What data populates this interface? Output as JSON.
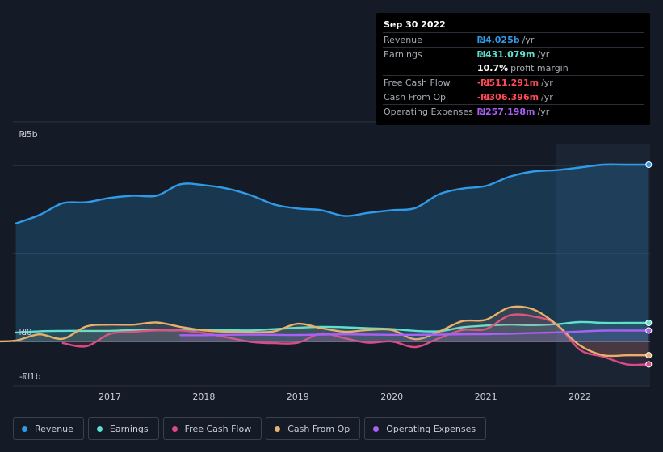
{
  "tooltip": {
    "date": "Sep 30 2022",
    "rows": [
      {
        "label": "Revenue",
        "value": "₪4.025b",
        "unit": "/yr",
        "color": "#2f9be8"
      },
      {
        "label": "Earnings",
        "value": "₪431.079m",
        "unit": "/yr",
        "color": "#5fe0cf"
      },
      {
        "label": "",
        "value": "10.7%",
        "unit": "profit margin",
        "color": "#ffffff"
      },
      {
        "label": "Free Cash Flow",
        "value": "-₪511.291m",
        "unit": "/yr",
        "color": "#ff4a5a"
      },
      {
        "label": "Cash From Op",
        "value": "-₪306.396m",
        "unit": "/yr",
        "color": "#ff4a5a"
      },
      {
        "label": "Operating Expenses",
        "value": "₪257.198m",
        "unit": "/yr",
        "color": "#a960f4"
      }
    ]
  },
  "chart_data": {
    "type": "line",
    "title": "",
    "ylim": [
      -1000,
      5000
    ],
    "y_ticks": [
      {
        "value": 5000,
        "label": "₪5b"
      },
      {
        "value": 0,
        "label": "₪0"
      },
      {
        "value": -1000,
        "label": "-₪1b"
      }
    ],
    "x_ticks": [
      {
        "value": 2017,
        "label": "2017"
      },
      {
        "value": 2018,
        "label": "2018"
      },
      {
        "value": 2019,
        "label": "2019"
      },
      {
        "value": 2020,
        "label": "2020"
      },
      {
        "value": 2021,
        "label": "2021"
      },
      {
        "value": 2022,
        "label": "2022"
      }
    ],
    "xlim": [
      2015.75,
      2022.75
    ],
    "forecast_start": 2021.75,
    "series": [
      {
        "name": "Revenue",
        "color": "#2f9be8",
        "fill": true,
        "points": [
          [
            2016.0,
            2690
          ],
          [
            2016.25,
            2880
          ],
          [
            2016.5,
            3150
          ],
          [
            2016.75,
            3170
          ],
          [
            2017.0,
            3270
          ],
          [
            2017.25,
            3320
          ],
          [
            2017.5,
            3320
          ],
          [
            2017.75,
            3580
          ],
          [
            2018.0,
            3560
          ],
          [
            2018.25,
            3480
          ],
          [
            2018.5,
            3330
          ],
          [
            2018.75,
            3120
          ],
          [
            2019.0,
            3030
          ],
          [
            2019.25,
            2990
          ],
          [
            2019.5,
            2860
          ],
          [
            2019.75,
            2930
          ],
          [
            2020.0,
            2990
          ],
          [
            2020.25,
            3040
          ],
          [
            2020.5,
            3350
          ],
          [
            2020.75,
            3480
          ],
          [
            2021.0,
            3540
          ],
          [
            2021.25,
            3750
          ],
          [
            2021.5,
            3870
          ],
          [
            2021.75,
            3900
          ],
          [
            2022.0,
            3960
          ],
          [
            2022.25,
            4025
          ],
          [
            2022.5,
            4025
          ]
        ]
      },
      {
        "name": "Earnings",
        "color": "#5fe0cf",
        "fill": false,
        "points": [
          [
            2016.0,
            210
          ],
          [
            2016.25,
            240
          ],
          [
            2016.5,
            250
          ],
          [
            2016.75,
            250
          ],
          [
            2017.0,
            250
          ],
          [
            2017.25,
            270
          ],
          [
            2017.5,
            270
          ],
          [
            2017.75,
            260
          ],
          [
            2018.0,
            280
          ],
          [
            2018.25,
            270
          ],
          [
            2018.5,
            260
          ],
          [
            2018.75,
            290
          ],
          [
            2019.0,
            320
          ],
          [
            2019.25,
            340
          ],
          [
            2019.5,
            330
          ],
          [
            2019.75,
            310
          ],
          [
            2020.0,
            290
          ],
          [
            2020.25,
            250
          ],
          [
            2020.5,
            240
          ],
          [
            2020.75,
            330
          ],
          [
            2021.0,
            370
          ],
          [
            2021.25,
            390
          ],
          [
            2021.5,
            380
          ],
          [
            2021.75,
            400
          ],
          [
            2022.0,
            450
          ],
          [
            2022.25,
            431
          ],
          [
            2022.5,
            431
          ]
        ]
      },
      {
        "name": "Free Cash Flow",
        "color": "#d94b86",
        "fill": false,
        "points": [
          [
            2016.5,
            -30
          ],
          [
            2016.75,
            -100
          ],
          [
            2017.0,
            180
          ],
          [
            2017.25,
            230
          ],
          [
            2017.5,
            260
          ],
          [
            2017.75,
            260
          ],
          [
            2018.0,
            200
          ],
          [
            2018.25,
            100
          ],
          [
            2018.5,
            0
          ],
          [
            2018.75,
            -30
          ],
          [
            2019.0,
            -20
          ],
          [
            2019.25,
            190
          ],
          [
            2019.5,
            80
          ],
          [
            2019.75,
            -20
          ],
          [
            2020.0,
            10
          ],
          [
            2020.25,
            -120
          ],
          [
            2020.5,
            80
          ],
          [
            2020.75,
            270
          ],
          [
            2021.0,
            290
          ],
          [
            2021.25,
            600
          ],
          [
            2021.5,
            580
          ],
          [
            2021.75,
            400
          ],
          [
            2022.0,
            -180
          ],
          [
            2022.25,
            -340
          ],
          [
            2022.5,
            -511
          ]
        ]
      },
      {
        "name": "Cash From Op",
        "color": "#e8b06a",
        "fill": false,
        "points": [
          [
            2015.75,
            10
          ],
          [
            2016.0,
            30
          ],
          [
            2016.25,
            170
          ],
          [
            2016.5,
            70
          ],
          [
            2016.75,
            350
          ],
          [
            2017.0,
            390
          ],
          [
            2017.25,
            390
          ],
          [
            2017.5,
            440
          ],
          [
            2017.75,
            340
          ],
          [
            2018.0,
            260
          ],
          [
            2018.25,
            230
          ],
          [
            2018.5,
            220
          ],
          [
            2018.75,
            240
          ],
          [
            2019.0,
            410
          ],
          [
            2019.25,
            310
          ],
          [
            2019.5,
            230
          ],
          [
            2019.75,
            270
          ],
          [
            2020.0,
            270
          ],
          [
            2020.25,
            60
          ],
          [
            2020.5,
            230
          ],
          [
            2020.75,
            470
          ],
          [
            2021.0,
            500
          ],
          [
            2021.25,
            780
          ],
          [
            2021.5,
            740
          ],
          [
            2021.75,
            400
          ],
          [
            2022.0,
            -80
          ],
          [
            2022.25,
            -306
          ],
          [
            2022.5,
            -306
          ]
        ]
      },
      {
        "name": "Operating Expenses",
        "color": "#a960f4",
        "fill": false,
        "points": [
          [
            2017.75,
            150
          ],
          [
            2018.0,
            150
          ],
          [
            2018.25,
            160
          ],
          [
            2018.5,
            165
          ],
          [
            2018.75,
            160
          ],
          [
            2019.0,
            155
          ],
          [
            2019.25,
            165
          ],
          [
            2019.5,
            170
          ],
          [
            2019.75,
            165
          ],
          [
            2020.0,
            160
          ],
          [
            2020.25,
            160
          ],
          [
            2020.5,
            165
          ],
          [
            2020.75,
            170
          ],
          [
            2021.0,
            175
          ],
          [
            2021.25,
            185
          ],
          [
            2021.5,
            200
          ],
          [
            2021.75,
            215
          ],
          [
            2022.0,
            235
          ],
          [
            2022.25,
            257
          ],
          [
            2022.5,
            257
          ]
        ]
      }
    ]
  },
  "legend": [
    {
      "label": "Revenue",
      "color": "#2f9be8"
    },
    {
      "label": "Earnings",
      "color": "#5fe0cf"
    },
    {
      "label": "Free Cash Flow",
      "color": "#d94b86"
    },
    {
      "label": "Cash From Op",
      "color": "#e8b06a"
    },
    {
      "label": "Operating Expenses",
      "color": "#a960f4"
    }
  ]
}
